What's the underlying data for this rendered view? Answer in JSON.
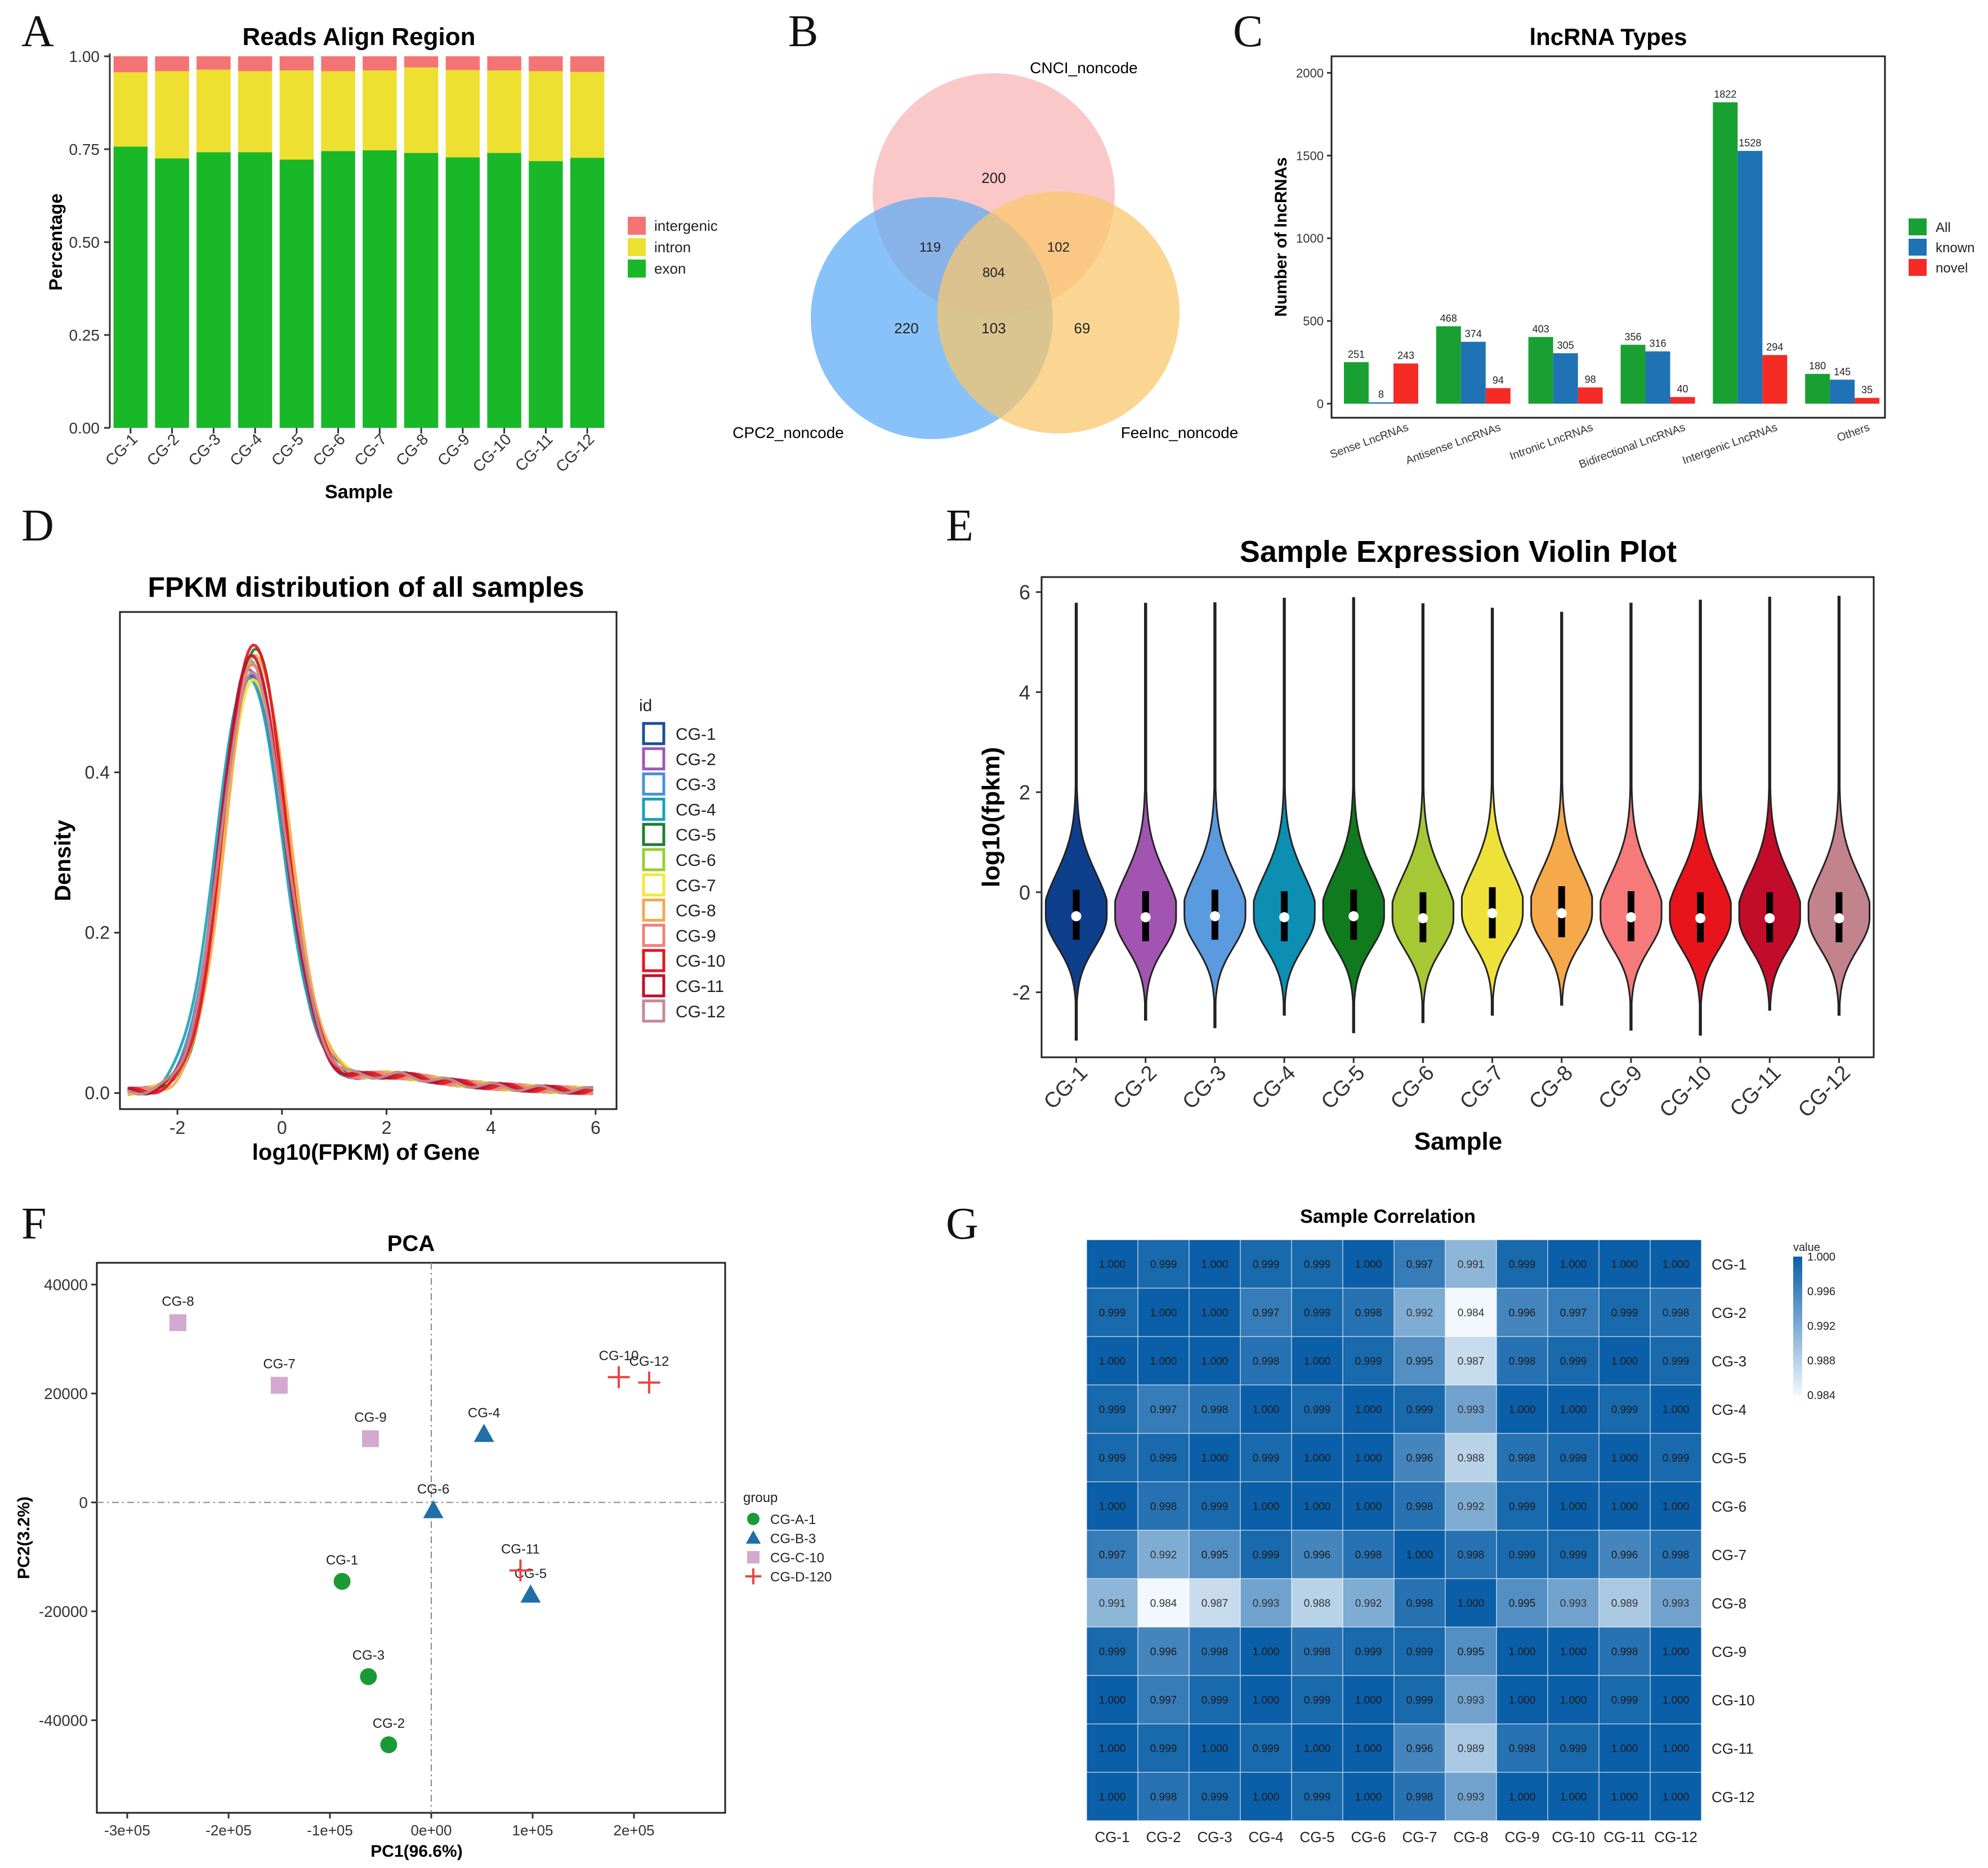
{
  "colors": {
    "exon": "#19B829",
    "intron": "#EDE030",
    "intergenic": "#F47474",
    "cnci": "#F8B8B8",
    "cpc2": "#5BAAF5",
    "feelnc": "#F9C66A",
    "all": "#19A032",
    "known": "#1F72B4",
    "novel": "#F42B25",
    "heat_high": "#0A5FA8",
    "heat_low": "#F2F8FD"
  },
  "panel_labels": [
    "A",
    "B",
    "C",
    "D",
    "E",
    "F",
    "G"
  ],
  "chart_data": [
    {
      "id": "A",
      "type": "bar",
      "stacked": true,
      "title": "Reads Align Region",
      "xlabel": "Sample",
      "ylabel": "Percentage",
      "ylim": [
        0,
        1
      ],
      "yticks": [
        "0.00",
        "0.25",
        "0.50",
        "0.75",
        "1.00"
      ],
      "categories": [
        "CG-1",
        "CG-2",
        "CG-3",
        "CG-4",
        "CG-5",
        "CG-6",
        "CG-7",
        "CG-8",
        "CG-9",
        "CG-10",
        "CG-11",
        "CG-12"
      ],
      "series": [
        {
          "name": "exon",
          "values": [
            0.757,
            0.725,
            0.742,
            0.742,
            0.722,
            0.745,
            0.747,
            0.74,
            0.728,
            0.74,
            0.718,
            0.727
          ]
        },
        {
          "name": "intron",
          "values": [
            0.2,
            0.235,
            0.222,
            0.218,
            0.24,
            0.215,
            0.215,
            0.23,
            0.235,
            0.222,
            0.242,
            0.231
          ]
        },
        {
          "name": "intergenic",
          "values": [
            0.043,
            0.04,
            0.036,
            0.04,
            0.038,
            0.04,
            0.038,
            0.03,
            0.037,
            0.038,
            0.04,
            0.042
          ]
        }
      ],
      "legend": [
        "intergenic",
        "intron",
        "exon"
      ]
    },
    {
      "id": "B",
      "type": "venn",
      "sets": [
        "CNCI_noncode",
        "CPC2_noncode",
        "FeeInc_noncode"
      ],
      "regions": {
        "cnci_only": "200",
        "cpc2_only": "220",
        "feelnc_only": "69",
        "cnci_cpc2": "119",
        "cnci_feelnc": "102",
        "cpc2_feelnc": "103",
        "all_three": "804"
      }
    },
    {
      "id": "C",
      "type": "bar",
      "title": "lncRNA Types",
      "ylabel": "Number of lncRNAs",
      "ylim": [
        0,
        2100
      ],
      "yticks": [
        "0",
        "500",
        "1000",
        "1500",
        "2000"
      ],
      "categories": [
        "Sense LncRNAs",
        "Antisense LncRNAs",
        "Intronic LncRNAs",
        "Bidirectional LncRNAs",
        "Intergenic LncRNAs",
        "Others"
      ],
      "series": [
        {
          "name": "All",
          "values": [
            251,
            468,
            403,
            356,
            1822,
            180
          ]
        },
        {
          "name": "known",
          "values": [
            8,
            374,
            305,
            316,
            1528,
            145
          ]
        },
        {
          "name": "novel",
          "values": [
            243,
            94,
            98,
            40,
            294,
            35
          ]
        }
      ]
    },
    {
      "id": "D",
      "type": "line",
      "title": "FPKM distribution of all samples",
      "xlabel": "log10(FPKM) of Gene",
      "ylabel": "Density",
      "xlim": [
        -3.1,
        6.4
      ],
      "ylim": [
        -0.02,
        0.6
      ],
      "xticks": [
        "-2",
        "0",
        "2",
        "4",
        "6"
      ],
      "yticks": [
        "0.0",
        "0.2",
        "0.4"
      ],
      "legend_title": "id",
      "series": [
        {
          "name": "CG-1",
          "color": "#1B4F9C",
          "peak": 0.515,
          "mu": -0.58,
          "sl": 0.58,
          "sr": 0.66
        },
        {
          "name": "CG-2",
          "color": "#9B59B6",
          "peak": 0.525,
          "mu": -0.62,
          "sl": 0.57,
          "sr": 0.64
        },
        {
          "name": "CG-3",
          "color": "#4A90D9",
          "peak": 0.54,
          "mu": -0.6,
          "sl": 0.58,
          "sr": 0.63
        },
        {
          "name": "CG-4",
          "color": "#17A2B8",
          "peak": 0.52,
          "mu": -0.65,
          "sl": 0.6,
          "sr": 0.65
        },
        {
          "name": "CG-5",
          "color": "#1E7D32",
          "peak": 0.55,
          "mu": -0.52,
          "sl": 0.57,
          "sr": 0.62
        },
        {
          "name": "CG-6",
          "color": "#9ACD32",
          "peak": 0.53,
          "mu": -0.58,
          "sl": 0.58,
          "sr": 0.64
        },
        {
          "name": "CG-7",
          "color": "#F2E93B",
          "peak": 0.51,
          "mu": -0.54,
          "sl": 0.6,
          "sr": 0.66
        },
        {
          "name": "CG-8",
          "color": "#F4A950",
          "peak": 0.545,
          "mu": -0.5,
          "sl": 0.57,
          "sr": 0.63
        },
        {
          "name": "CG-9",
          "color": "#F08080",
          "peak": 0.535,
          "mu": -0.56,
          "sl": 0.58,
          "sr": 0.63
        },
        {
          "name": "CG-10",
          "color": "#E6141E",
          "peak": 0.56,
          "mu": -0.55,
          "sl": 0.56,
          "sr": 0.62
        },
        {
          "name": "CG-11",
          "color": "#C0102C",
          "peak": 0.545,
          "mu": -0.6,
          "sl": 0.57,
          "sr": 0.63
        },
        {
          "name": "CG-12",
          "color": "#C48A96",
          "peak": 0.52,
          "mu": -0.58,
          "sl": 0.59,
          "sr": 0.65
        }
      ]
    },
    {
      "id": "E",
      "type": "violin",
      "title": "Sample Expression Violin Plot",
      "xlabel": "Sample",
      "ylabel": "log10(fpkm)",
      "ylim": [
        -3.3,
        6.3
      ],
      "yticks": [
        "-2",
        "0",
        "2",
        "4",
        "6"
      ],
      "categories": [
        "CG-1",
        "CG-2",
        "CG-3",
        "CG-4",
        "CG-5",
        "CG-6",
        "CG-7",
        "CG-8",
        "CG-9",
        "CG-10",
        "CG-11",
        "CG-12"
      ],
      "colors": [
        "#0E3F8C",
        "#A155B0",
        "#5A9BE0",
        "#0D8FB3",
        "#0F7A1E",
        "#A5C834",
        "#EEE23A",
        "#F5A94A",
        "#F67A7A",
        "#E8141B",
        "#C20C2A",
        "#C3838D"
      ],
      "median": [
        -0.48,
        -0.5,
        -0.48,
        -0.5,
        -0.48,
        -0.52,
        -0.42,
        -0.42,
        -0.5,
        -0.52,
        -0.52,
        -0.52
      ],
      "q1": [
        -0.95,
        -0.98,
        -0.95,
        -0.98,
        -0.95,
        -1.0,
        -0.92,
        -0.9,
        -0.98,
        -1.0,
        -1.0,
        -1.0
      ],
      "q3": [
        0.05,
        0.02,
        0.05,
        0.02,
        0.05,
        0.0,
        0.1,
        0.12,
        0.02,
        0.0,
        0.0,
        0.0
      ],
      "min": [
        -2.95,
        -2.55,
        -2.7,
        -2.45,
        -2.8,
        -2.6,
        -2.45,
        -2.25,
        -2.75,
        -2.85,
        -2.35,
        -2.45
      ],
      "max": [
        5.8,
        5.8,
        5.8,
        5.9,
        5.9,
        5.8,
        5.7,
        5.6,
        5.8,
        5.85,
        5.9,
        5.95
      ]
    },
    {
      "id": "F",
      "type": "scatter",
      "title": "PCA",
      "xlabel": "PC1(96.6%)",
      "ylabel": "PC2(3.2%)",
      "xlim": [
        -330000,
        290000
      ],
      "ylim": [
        -57000,
        44000
      ],
      "xticks": [
        {
          "v": -300000,
          "t": "-3e+05"
        },
        {
          "v": -200000,
          "t": "-2e+05"
        },
        {
          "v": -100000,
          "t": "-1e+05"
        },
        {
          "v": 0,
          "t": "0e+00"
        },
        {
          "v": 100000,
          "t": "1e+05"
        },
        {
          "v": 200000,
          "t": "2e+05"
        }
      ],
      "yticks": [
        {
          "v": 40000,
          "t": "40000"
        },
        {
          "v": 20000,
          "t": "20000"
        },
        {
          "v": 0,
          "t": "0"
        },
        {
          "v": -20000,
          "t": "-20000"
        },
        {
          "v": -40000,
          "t": "-40000"
        }
      ],
      "legend_title": "group",
      "groups": [
        {
          "name": "CG-A-1",
          "shape": "circle",
          "color": "#1A9A35"
        },
        {
          "name": "CG-B-3",
          "shape": "triangle",
          "color": "#1F6FA8"
        },
        {
          "name": "CG-C-10",
          "shape": "square",
          "color": "#D3A9CF"
        },
        {
          "name": "CG-D-120",
          "shape": "cross",
          "color": "#EE4444"
        }
      ],
      "points": [
        {
          "label": "CG-1",
          "x": -88000,
          "y": -14500,
          "group": 0
        },
        {
          "label": "CG-2",
          "x": -42000,
          "y": -44500,
          "group": 0
        },
        {
          "label": "CG-3",
          "x": -62000,
          "y": -32000,
          "group": 0
        },
        {
          "label": "CG-4",
          "x": 52000,
          "y": 12500,
          "group": 1
        },
        {
          "label": "CG-5",
          "x": 98000,
          "y": -17000,
          "group": 1
        },
        {
          "label": "CG-6",
          "x": 2000,
          "y": -1500,
          "group": 1
        },
        {
          "label": "CG-7",
          "x": -150000,
          "y": 21500,
          "group": 2
        },
        {
          "label": "CG-8",
          "x": -250000,
          "y": 33000,
          "group": 2
        },
        {
          "label": "CG-9",
          "x": -60000,
          "y": 11700,
          "group": 2
        },
        {
          "label": "CG-10",
          "x": 185000,
          "y": 23000,
          "group": 3
        },
        {
          "label": "CG-11",
          "x": 88000,
          "y": -12500,
          "group": 3
        },
        {
          "label": "CG-12",
          "x": 215000,
          "y": 22000,
          "group": 3
        }
      ]
    },
    {
      "id": "G",
      "type": "heatmap",
      "title": "Sample Correlation",
      "legend_title": "value",
      "scale_min": 0.984,
      "scale_max": 1.0,
      "scale_ticks": [
        "1.000",
        "0.996",
        "0.992",
        "0.988",
        "0.984"
      ],
      "labels": [
        "CG-1",
        "CG-2",
        "CG-3",
        "CG-4",
        "CG-5",
        "CG-6",
        "CG-7",
        "CG-8",
        "CG-9",
        "CG-10",
        "CG-11",
        "CG-12"
      ],
      "matrix": [
        [
          "1.000",
          "0.999",
          "1.000",
          "0.999",
          "0.999",
          "1.000",
          "0.997",
          "0.991",
          "0.999",
          "1.000",
          "1.000",
          "1.000"
        ],
        [
          "0.999",
          "1.000",
          "1.000",
          "0.997",
          "0.999",
          "0.998",
          "0.992",
          "0.984",
          "0.996",
          "0.997",
          "0.999",
          "0.998"
        ],
        [
          "1.000",
          "1.000",
          "1.000",
          "0.998",
          "1.000",
          "0.999",
          "0.995",
          "0.987",
          "0.998",
          "0.999",
          "1.000",
          "0.999"
        ],
        [
          "0.999",
          "0.997",
          "0.998",
          "1.000",
          "0.999",
          "1.000",
          "0.999",
          "0.993",
          "1.000",
          "1.000",
          "0.999",
          "1.000"
        ],
        [
          "0.999",
          "0.999",
          "1.000",
          "0.999",
          "1.000",
          "1.000",
          "0.996",
          "0.988",
          "0.998",
          "0.999",
          "1.000",
          "0.999"
        ],
        [
          "1.000",
          "0.998",
          "0.999",
          "1.000",
          "1.000",
          "1.000",
          "0.998",
          "0.992",
          "0.999",
          "1.000",
          "1.000",
          "1.000"
        ],
        [
          "0.997",
          "0.992",
          "0.995",
          "0.999",
          "0.996",
          "0.998",
          "1.000",
          "0.998",
          "0.999",
          "0.999",
          "0.996",
          "0.998"
        ],
        [
          "0.991",
          "0.984",
          "0.987",
          "0.993",
          "0.988",
          "0.992",
          "0.998",
          "1.000",
          "0.995",
          "0.993",
          "0.989",
          "0.993"
        ],
        [
          "0.999",
          "0.996",
          "0.998",
          "1.000",
          "0.998",
          "0.999",
          "0.999",
          "0.995",
          "1.000",
          "1.000",
          "0.998",
          "1.000"
        ],
        [
          "1.000",
          "0.997",
          "0.999",
          "1.000",
          "0.999",
          "1.000",
          "0.999",
          "0.993",
          "1.000",
          "1.000",
          "0.999",
          "1.000"
        ],
        [
          "1.000",
          "0.999",
          "1.000",
          "0.999",
          "1.000",
          "1.000",
          "0.996",
          "0.989",
          "0.998",
          "0.999",
          "1.000",
          "1.000"
        ],
        [
          "1.000",
          "0.998",
          "0.999",
          "1.000",
          "0.999",
          "1.000",
          "0.998",
          "0.993",
          "1.000",
          "1.000",
          "1.000",
          "1.000"
        ]
      ]
    }
  ]
}
